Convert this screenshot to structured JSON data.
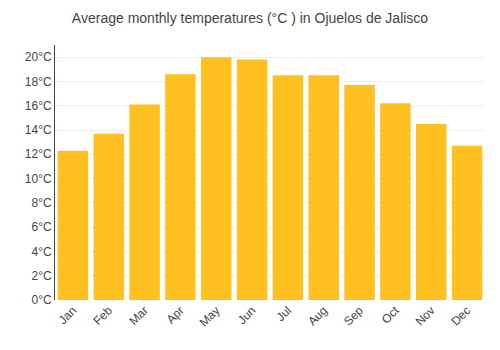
{
  "chart_data": {
    "type": "bar",
    "title": "Average monthly temperatures (°C ) in Ojuelos de Jalisco",
    "categories": [
      "Jan",
      "Feb",
      "Mar",
      "Apr",
      "May",
      "Jun",
      "Jul",
      "Aug",
      "Sep",
      "Oct",
      "Nov",
      "Dec"
    ],
    "values": [
      12.3,
      13.7,
      16.1,
      18.6,
      20.0,
      19.8,
      18.5,
      18.5,
      17.7,
      16.2,
      14.5,
      12.7
    ],
    "color": "#FFC020",
    "ylim": [
      0,
      21
    ],
    "yticks": [
      {
        "value": 0,
        "label": "0°C"
      },
      {
        "value": 2,
        "label": "2°C"
      },
      {
        "value": 4,
        "label": "4°C"
      },
      {
        "value": 6,
        "label": "6°C"
      },
      {
        "value": 8,
        "label": "8°C"
      },
      {
        "value": 10,
        "label": "10°C"
      },
      {
        "value": 12,
        "label": "12°C"
      },
      {
        "value": 14,
        "label": "14°C"
      },
      {
        "value": 16,
        "label": "16°C"
      },
      {
        "value": 18,
        "label": "18°C"
      },
      {
        "value": 20,
        "label": "20°C"
      }
    ],
    "grid": true
  }
}
